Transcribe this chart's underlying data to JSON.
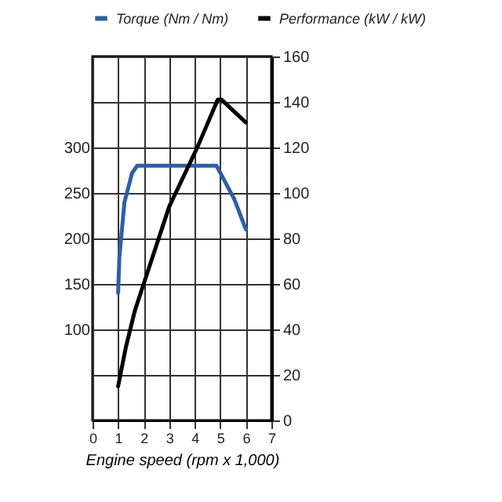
{
  "chart_data": {
    "type": "line",
    "xlabel": "Engine speed (rpm x 1,000)",
    "xlim": [
      0,
      7
    ],
    "xticks": [
      0,
      1,
      2,
      3,
      4,
      5,
      6,
      7
    ],
    "ylim": [
      0,
      400
    ],
    "yticks": [
      100,
      150,
      200,
      250,
      300
    ],
    "y2lim": [
      0,
      160
    ],
    "y2ticks": [
      0,
      20,
      40,
      60,
      80,
      100,
      120,
      140,
      160
    ],
    "grid": true,
    "legend": "top",
    "marker": "none",
    "line_style": "solid",
    "series": [
      {
        "name": "Torque (Nm / Nm)",
        "color": "#2d5fa6",
        "x": [
          1,
          1.05,
          1.25,
          1.55,
          1.75,
          4.85,
          5.55,
          6
        ],
        "values": [
          140,
          180,
          240,
          272,
          280,
          280,
          243,
          210
        ]
      },
      {
        "name": "Performance (kW / kW)",
        "color": "#000000",
        "axis": "y2",
        "x": [
          1,
          1.3,
          1.65,
          2,
          3,
          4.1,
          4.9,
          5.05,
          6
        ],
        "values": [
          15,
          32,
          48,
          60,
          94,
          120,
          141,
          141,
          131
        ]
      }
    ]
  }
}
